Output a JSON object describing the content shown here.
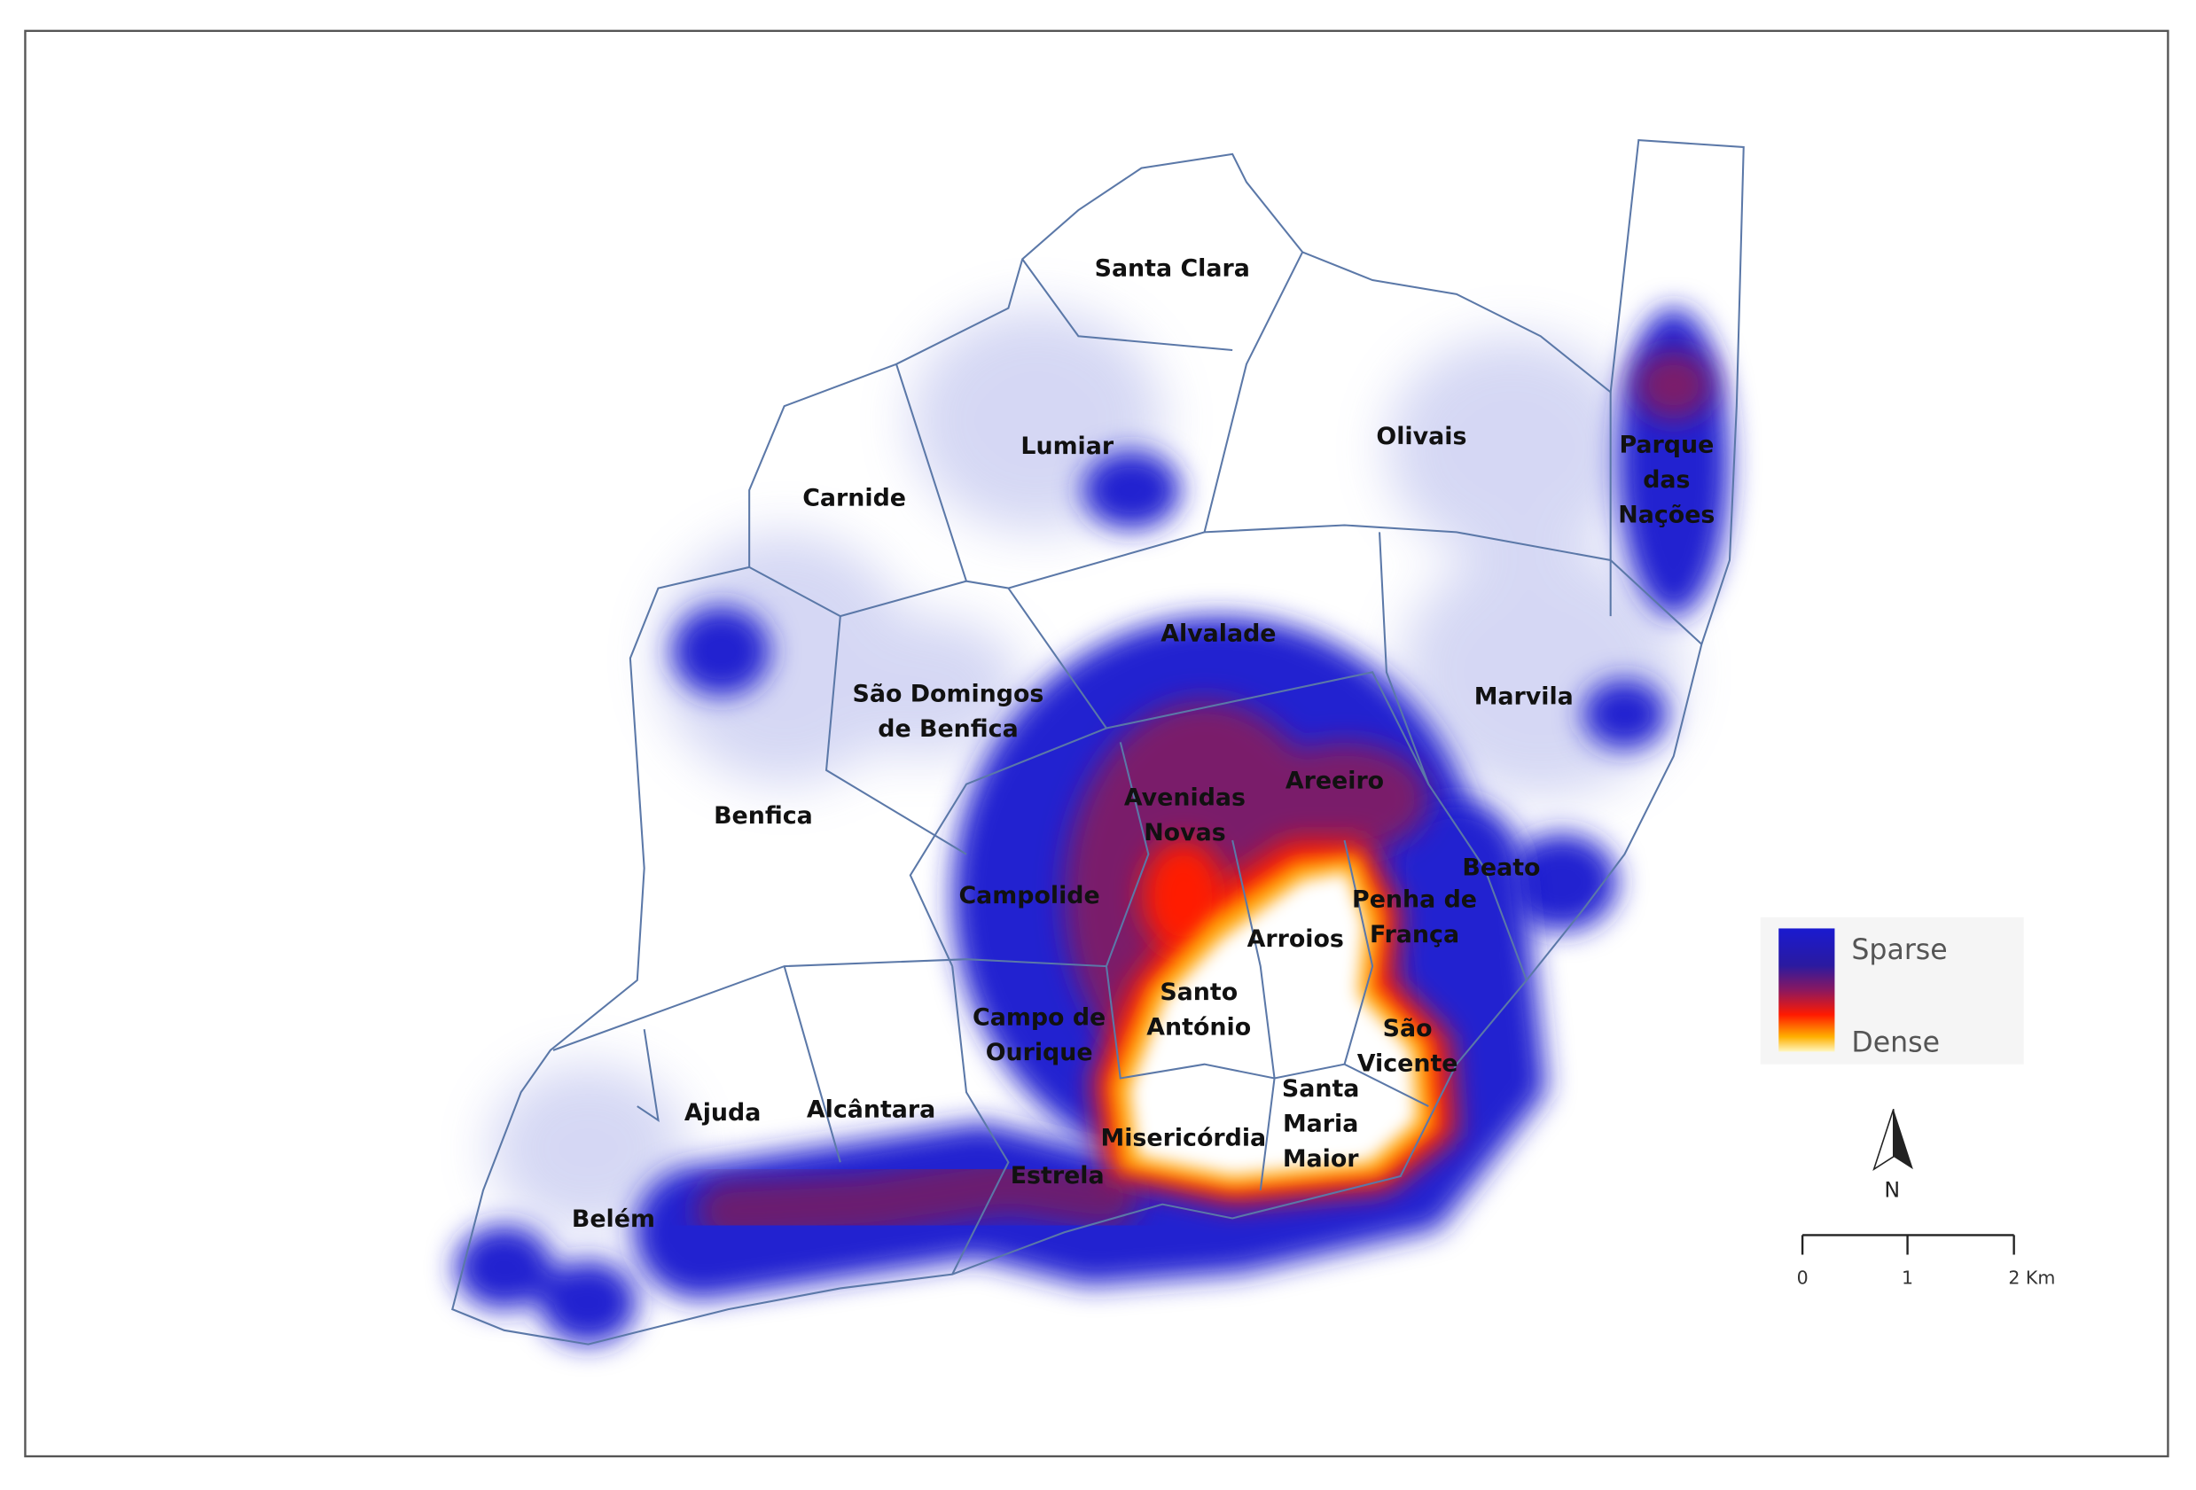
{
  "labels": [
    {
      "lines": [
        "Santa Clara"
      ]
    },
    {
      "lines": [
        "Lumiar"
      ]
    },
    {
      "lines": [
        "Olivais"
      ]
    },
    {
      "lines": [
        "Carnide"
      ]
    },
    {
      "lines": [
        "Parque",
        "das",
        "Nações"
      ]
    },
    {
      "lines": [
        "Alvalade"
      ]
    },
    {
      "lines": [
        "São Domingos",
        "de Benfica"
      ]
    },
    {
      "lines": [
        "Marvila"
      ]
    },
    {
      "lines": [
        "Benfica"
      ]
    },
    {
      "lines": [
        "Areeiro"
      ]
    },
    {
      "lines": [
        "Avenidas",
        "Novas"
      ]
    },
    {
      "lines": [
        "Beato"
      ]
    },
    {
      "lines": [
        "Campolide"
      ]
    },
    {
      "lines": [
        "Penha de",
        "França"
      ]
    },
    {
      "lines": [
        "Arroios"
      ]
    },
    {
      "lines": [
        "Santo",
        "António"
      ]
    },
    {
      "lines": [
        "Campo de",
        "Ourique"
      ]
    },
    {
      "lines": [
        "São",
        "Vicente"
      ]
    },
    {
      "lines": [
        "Santa",
        "Maria",
        "Maior"
      ]
    },
    {
      "lines": [
        "Ajuda"
      ]
    },
    {
      "lines": [
        "Alcântara"
      ]
    },
    {
      "lines": [
        "Misericórdia"
      ]
    },
    {
      "lines": [
        "Estrela"
      ]
    },
    {
      "lines": [
        "Belém"
      ]
    }
  ],
  "legend": {
    "high": "Sparse",
    "low": "Dense"
  },
  "north_arrow": "N",
  "scale_bar": [
    "0",
    "1",
    "2 Km"
  ]
}
